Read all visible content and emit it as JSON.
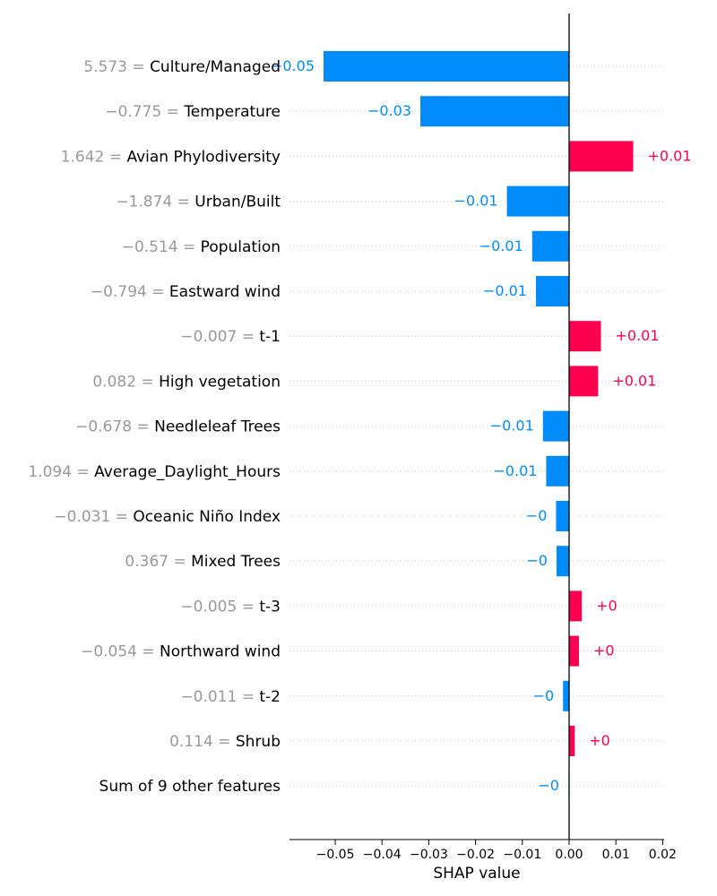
{
  "chart_data": {
    "type": "bar",
    "orientation": "horizontal",
    "xlabel": "SHAP value",
    "ylabel": "",
    "xlim": [
      -0.0595,
      0.0201
    ],
    "xticks": [
      -0.05,
      -0.04,
      -0.03,
      -0.02,
      -0.01,
      0.0,
      0.01,
      0.02
    ],
    "xtick_labels": [
      "−0.05",
      "−0.04",
      "−0.03",
      "−0.02",
      "−0.01",
      "0.00",
      "0.01",
      "0.02"
    ],
    "grid": "dotted horizontal lines per row",
    "colors": {
      "negative": "#008bfb",
      "positive": "#ff0051",
      "feature_value": "#999999"
    },
    "features": [
      {
        "value": "5.573",
        "name": "Culture/Managed",
        "shap": -0.0525,
        "label": "−0.05"
      },
      {
        "value": "−0.775",
        "name": "Temperature",
        "shap": -0.0318,
        "label": "−0.03"
      },
      {
        "value": "1.642",
        "name": "Avian Phylodiversity",
        "shap": 0.0137,
        "label": "+0.01"
      },
      {
        "value": "−1.874",
        "name": "Urban/Built",
        "shap": -0.0133,
        "label": "−0.01"
      },
      {
        "value": "−0.514",
        "name": "Population",
        "shap": -0.0079,
        "label": "−0.01"
      },
      {
        "value": "−0.794",
        "name": "Eastward wind",
        "shap": -0.0071,
        "label": "−0.01"
      },
      {
        "value": "−0.007",
        "name": "t-1",
        "shap": 0.0068,
        "label": "+0.01"
      },
      {
        "value": "0.082",
        "name": "High vegetation",
        "shap": 0.0062,
        "label": "+0.01"
      },
      {
        "value": "−0.678",
        "name": "Needleleaf Trees",
        "shap": -0.0056,
        "label": "−0.01"
      },
      {
        "value": "1.094",
        "name": "Average_Daylight_Hours",
        "shap": -0.0049,
        "label": "−0.01"
      },
      {
        "value": "−0.031",
        "name": "Oceanic Niño Index",
        "shap": -0.0028,
        "label": "−0"
      },
      {
        "value": "0.367",
        "name": "Mixed Trees",
        "shap": -0.0027,
        "label": "−0"
      },
      {
        "value": "−0.005",
        "name": "t-3",
        "shap": 0.0027,
        "label": "+0"
      },
      {
        "value": "−0.054",
        "name": "Northward wind",
        "shap": 0.0021,
        "label": "+0"
      },
      {
        "value": "−0.011",
        "name": "t-2",
        "shap": -0.0013,
        "label": "−0"
      },
      {
        "value": "0.114",
        "name": "Shrub",
        "shap": 0.0012,
        "label": "+0"
      },
      {
        "value": "",
        "name": "Sum of 9 other features",
        "shap": -0.0002,
        "label": "−0"
      }
    ]
  }
}
